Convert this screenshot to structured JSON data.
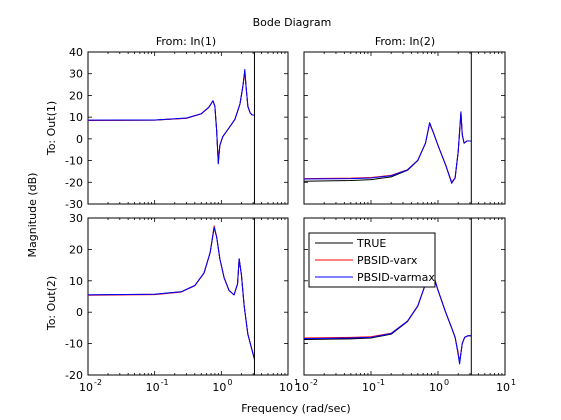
{
  "figure": {
    "title": "Bode Diagram",
    "xlabel": "Frequency  (rad/sec)",
    "ylabel": "Magnitude (dB)",
    "col_headers": [
      "From: In(1)",
      "From: In(2)"
    ],
    "row_headers": [
      "To: Out(1)",
      "To: Out(2)"
    ]
  },
  "colors": {
    "TRUE": "#000000",
    "PBSID-varx": "#ff0000",
    "PBSID-varmax": "#0000ff"
  },
  "chart_data": {
    "type": "line",
    "x_scale": "log",
    "xlim": [
      0.01,
      10
    ],
    "x_ticks": [
      0.01,
      0.1,
      1,
      10
    ],
    "vline_x": 3.14,
    "grid": false,
    "legend": {
      "entries": [
        "TRUE",
        "PBSID-varx",
        "PBSID-varmax"
      ],
      "placement": "upper-left of bottom-right panel"
    },
    "panels": [
      {
        "row": 0,
        "col": 0,
        "ylim": [
          -30,
          40
        ],
        "y_ticks": [
          -30,
          -20,
          -10,
          0,
          10,
          20,
          30,
          40
        ],
        "series": [
          {
            "name": "TRUE",
            "x": [
              0.01,
              0.1,
              0.3,
              0.5,
              0.65,
              0.75,
              0.8,
              0.85,
              0.9,
              0.95,
              1.05,
              1.3,
              1.6,
              1.9,
              2.1,
              2.25,
              2.35,
              2.5,
              2.7,
              2.9,
              3.14
            ],
            "y": [
              8.5,
              8.6,
              9.5,
              11.5,
              14.5,
              17.5,
              15,
              4,
              -11,
              -3,
              1,
              5,
              9,
              16,
              24,
              31,
              24,
              15,
              12,
              11,
              11
            ]
          },
          {
            "name": "PBSID-varx",
            "x": [
              0.01,
              0.1,
              0.3,
              0.5,
              0.65,
              0.75,
              0.8,
              0.85,
              0.9,
              0.95,
              1.05,
              1.3,
              1.6,
              1.9,
              2.1,
              2.25,
              2.35,
              2.5,
              2.7,
              2.9,
              3.14
            ],
            "y": [
              8.5,
              8.6,
              9.5,
              11.5,
              14.5,
              17.5,
              15,
              4,
              -11,
              -3,
              1,
              5,
              9,
              16,
              24,
              31,
              24,
              15,
              12,
              11,
              11
            ]
          },
          {
            "name": "PBSID-varmax",
            "x": [
              0.01,
              0.1,
              0.3,
              0.5,
              0.65,
              0.75,
              0.8,
              0.85,
              0.9,
              0.95,
              1.05,
              1.3,
              1.6,
              1.9,
              2.1,
              2.25,
              2.35,
              2.5,
              2.7,
              2.9,
              3.14
            ],
            "y": [
              8.6,
              8.7,
              9.6,
              11.6,
              14.6,
              17.6,
              15,
              4,
              -11.5,
              -3,
              1,
              5,
              9,
              16,
              24,
              32,
              24,
              15,
              12,
              11,
              11
            ]
          }
        ]
      },
      {
        "row": 0,
        "col": 1,
        "ylim": [
          -30,
          40
        ],
        "y_ticks": [
          -30,
          -20,
          -10,
          0,
          10,
          20,
          30,
          40
        ],
        "series": [
          {
            "name": "TRUE",
            "x": [
              0.01,
              0.05,
              0.1,
              0.2,
              0.35,
              0.5,
              0.65,
              0.75,
              0.85,
              1.0,
              1.3,
              1.6,
              1.8,
              2.0,
              2.2,
              2.3,
              2.45,
              2.7,
              3.14
            ],
            "y": [
              -19.5,
              -19.2,
              -18.8,
              -17.5,
              -14.5,
              -10,
              -2,
              7,
              3,
              -3,
              -12,
              -20,
              -18,
              -6,
              12,
              2,
              -2,
              -1,
              -1
            ]
          },
          {
            "name": "PBSID-varx",
            "x": [
              0.01,
              0.05,
              0.1,
              0.2,
              0.35,
              0.5,
              0.65,
              0.75,
              0.85,
              1.0,
              1.3,
              1.6,
              1.8,
              2.0,
              2.2,
              2.3,
              2.45,
              2.7,
              3.14
            ],
            "y": [
              -18.3,
              -18.1,
              -17.8,
              -16.8,
              -14.2,
              -9.8,
              -2,
              7,
              3,
              -3,
              -12,
              -20,
              -18,
              -6,
              12,
              2,
              -2,
              -1,
              -1
            ]
          },
          {
            "name": "PBSID-varmax",
            "x": [
              0.01,
              0.05,
              0.1,
              0.2,
              0.35,
              0.5,
              0.65,
              0.75,
              0.85,
              1.0,
              1.3,
              1.6,
              1.8,
              2.0,
              2.2,
              2.3,
              2.45,
              2.7,
              3.14
            ],
            "y": [
              -18.5,
              -18.3,
              -18,
              -17,
              -14.3,
              -9.9,
              -2,
              7.5,
              3,
              -3,
              -12,
              -20.5,
              -18,
              -6,
              12.5,
              2,
              -2,
              -1,
              -1
            ]
          }
        ]
      },
      {
        "row": 1,
        "col": 0,
        "ylim": [
          -20,
          30
        ],
        "y_ticks": [
          -20,
          -10,
          0,
          10,
          20,
          30
        ],
        "series": [
          {
            "name": "TRUE",
            "x": [
              0.01,
              0.1,
              0.25,
              0.4,
              0.55,
              0.68,
              0.78,
              0.85,
              0.95,
              1.1,
              1.3,
              1.55,
              1.75,
              1.85,
              2.0,
              2.2,
              2.5,
              2.8,
              3.14
            ],
            "y": [
              5.5,
              5.7,
              6.5,
              8.5,
              12.5,
              19,
              27,
              24,
              17,
              11,
              7,
              5.5,
              9,
              17,
              12,
              2,
              -7,
              -11,
              -15
            ]
          },
          {
            "name": "PBSID-varx",
            "x": [
              0.01,
              0.1,
              0.25,
              0.4,
              0.55,
              0.68,
              0.78,
              0.85,
              0.95,
              1.1,
              1.3,
              1.55,
              1.75,
              1.85,
              2.0,
              2.2,
              2.5,
              2.8,
              3.14
            ],
            "y": [
              5.4,
              5.6,
              6.4,
              8.4,
              12.4,
              19,
              27.5,
              24,
              17,
              11,
              7,
              5.5,
              9,
              17,
              12,
              2,
              -7,
              -11,
              -15
            ]
          },
          {
            "name": "PBSID-varmax",
            "x": [
              0.01,
              0.1,
              0.25,
              0.4,
              0.55,
              0.68,
              0.78,
              0.85,
              0.95,
              1.1,
              1.3,
              1.55,
              1.75,
              1.85,
              2.0,
              2.2,
              2.5,
              2.8,
              3.14
            ],
            "y": [
              5.5,
              5.7,
              6.5,
              8.5,
              12.5,
              19,
              27,
              24,
              17,
              11,
              7,
              5.5,
              9,
              17,
              12,
              2,
              -7,
              -11,
              -15
            ]
          }
        ]
      },
      {
        "row": 1,
        "col": 1,
        "ylim": [
          -20,
          30
        ],
        "y_ticks": [
          -20,
          -10,
          0,
          10,
          20,
          30
        ],
        "series": [
          {
            "name": "TRUE",
            "x": [
              0.01,
              0.05,
              0.1,
              0.2,
              0.35,
              0.5,
              0.65,
              0.75,
              0.85,
              1.0,
              1.3,
              1.6,
              1.8,
              2.0,
              2.1,
              2.2,
              2.3,
              2.5,
              2.8,
              3.14
            ],
            "y": [
              -8.7,
              -8.5,
              -8.2,
              -7,
              -3,
              2,
              9,
              14,
              12,
              7,
              0,
              -5,
              -8,
              -13,
              -16,
              -13,
              -10,
              -8,
              -7.5,
              -7.5
            ]
          },
          {
            "name": "PBSID-varx",
            "x": [
              0.01,
              0.05,
              0.1,
              0.2,
              0.35,
              0.5,
              0.65,
              0.75,
              0.85,
              1.0,
              1.3,
              1.6,
              1.8,
              2.0,
              2.1,
              2.2,
              2.3,
              2.5,
              2.8,
              3.14
            ],
            "y": [
              -8.2,
              -8,
              -7.8,
              -6.7,
              -2.8,
              2.1,
              9,
              14,
              12,
              7,
              0,
              -5,
              -8,
              -13,
              -16,
              -13,
              -10,
              -8,
              -7.5,
              -7.5
            ]
          },
          {
            "name": "PBSID-varmax",
            "x": [
              0.01,
              0.05,
              0.1,
              0.2,
              0.35,
              0.5,
              0.65,
              0.75,
              0.85,
              1.0,
              1.3,
              1.6,
              1.8,
              2.0,
              2.1,
              2.2,
              2.3,
              2.5,
              2.8,
              3.14
            ],
            "y": [
              -8.4,
              -8.2,
              -8,
              -6.8,
              -2.9,
              2,
              9,
              14,
              12,
              7,
              0,
              -5,
              -8,
              -13.5,
              -16.5,
              -13,
              -10,
              -8,
              -7.5,
              -7.5
            ]
          }
        ]
      }
    ]
  }
}
